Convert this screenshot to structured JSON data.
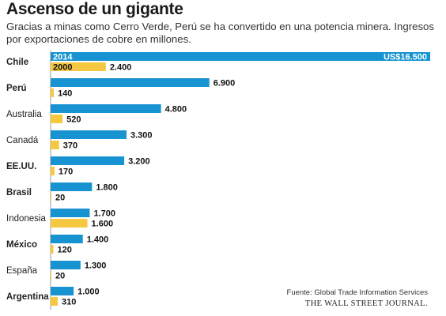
{
  "title": "Ascenso de un gigante",
  "subtitle": "Gracias a minas como Cerro Verde, Perú se ha convertido en una potencia minera. Ingresos por exportaciones de cobre en millones.",
  "source": "Fuente: Global Trade Information Services",
  "publisher": "THE WALL STREET JOURNAL.",
  "colors": {
    "series_2014": "#1793d1",
    "series_2000": "#f5c842"
  },
  "chart_data": {
    "type": "bar",
    "orientation": "horizontal",
    "title": "Ascenso de un gigante",
    "categories": [
      "Chile",
      "Perú",
      "Australia",
      "Canadá",
      "EE.UU.",
      "Brasil",
      "Indonesia",
      "México",
      "España",
      "Argentina"
    ],
    "bold_categories": [
      "Chile",
      "Perú",
      "EE.UU.",
      "Brasil",
      "México",
      "Argentina"
    ],
    "series": [
      {
        "name": "2014",
        "values": [
          16500,
          6900,
          4800,
          3300,
          3200,
          1800,
          1700,
          1400,
          1300,
          1000
        ],
        "labels": [
          "US$16.500",
          "6.900",
          "4.800",
          "3.300",
          "3.200",
          "1.800",
          "1.700",
          "1.400",
          "1.300",
          "1.000"
        ]
      },
      {
        "name": "2000",
        "values": [
          2400,
          140,
          520,
          370,
          170,
          20,
          1600,
          120,
          20,
          310
        ],
        "labels": [
          "2.400",
          "140",
          "520",
          "370",
          "170",
          "20",
          "1.600",
          "120",
          "20",
          "310"
        ]
      }
    ],
    "xlim": [
      0,
      16500
    ]
  }
}
